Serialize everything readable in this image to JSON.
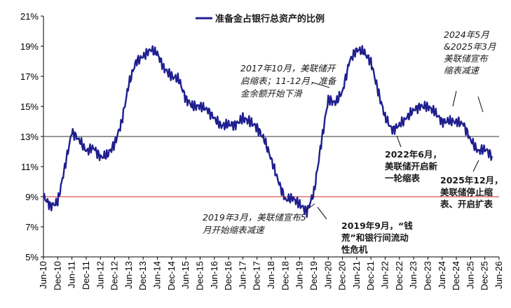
{
  "chart_data": {
    "type": "line",
    "title": "",
    "xlabel": "",
    "ylabel": "",
    "ylim": [
      5,
      21
    ],
    "y_ticks": [
      "5%",
      "7%",
      "9%",
      "11%",
      "13%",
      "15%",
      "17%",
      "19%",
      "21%"
    ],
    "y_tick_values": [
      5,
      7,
      9,
      11,
      13,
      15,
      17,
      19,
      21
    ],
    "x_range": [
      "2010-06",
      "2026-06"
    ],
    "x_ticks": [
      "Jun-10",
      "Dec-10",
      "Jun-11",
      "Dec-11",
      "Jun-12",
      "Dec-12",
      "Jun-13",
      "Dec-13",
      "Jun-14",
      "Dec-14",
      "Jun-15",
      "Dec-15",
      "Jun-16",
      "Dec-16",
      "Jun-17",
      "Dec-17",
      "Jun-18",
      "Dec-18",
      "Jun-19",
      "Dec-19",
      "Jun-20",
      "Dec-20",
      "Jun-21",
      "Dec-21",
      "Jun-22",
      "Dec-22",
      "Jun-23",
      "Dec-23",
      "Jun-24",
      "Dec-24",
      "Jun-25",
      "Dec-25",
      "Jun-26"
    ],
    "legend": {
      "placement": "top",
      "label": "准备金占银行总资产的比例"
    },
    "series": [
      {
        "name": "准备金占银行总资产的比例",
        "color": "#1f1f8f",
        "x": [
          "2010-06",
          "2010-09",
          "2010-12",
          "2011-03",
          "2011-06",
          "2011-09",
          "2011-12",
          "2012-03",
          "2012-06",
          "2012-09",
          "2012-12",
          "2013-03",
          "2013-06",
          "2013-09",
          "2013-12",
          "2014-03",
          "2014-06",
          "2014-09",
          "2014-12",
          "2015-03",
          "2015-06",
          "2015-09",
          "2015-12",
          "2016-03",
          "2016-06",
          "2016-09",
          "2016-12",
          "2017-03",
          "2017-06",
          "2017-09",
          "2017-12",
          "2018-03",
          "2018-06",
          "2018-09",
          "2018-12",
          "2019-03",
          "2019-06",
          "2019-09",
          "2019-12",
          "2020-03",
          "2020-06",
          "2020-09",
          "2020-12",
          "2021-03",
          "2021-06",
          "2021-09",
          "2021-12",
          "2022-03",
          "2022-06",
          "2022-09",
          "2022-12",
          "2023-03",
          "2023-06",
          "2023-09",
          "2023-12",
          "2024-03",
          "2024-06",
          "2024-09",
          "2024-12",
          "2025-03",
          "2025-06",
          "2025-09",
          "2025-12",
          "2026-03"
        ],
        "values": [
          9.0,
          8.4,
          8.6,
          11.0,
          13.3,
          12.8,
          12.0,
          12.3,
          11.6,
          11.8,
          12.5,
          14.0,
          16.5,
          18.0,
          18.3,
          18.8,
          18.5,
          17.5,
          17.0,
          16.8,
          15.5,
          15.0,
          15.0,
          14.8,
          14.2,
          13.7,
          13.8,
          13.8,
          14.2,
          14.0,
          13.6,
          12.8,
          11.5,
          10.0,
          8.8,
          8.9,
          8.5,
          8.0,
          9.3,
          12.5,
          15.5,
          15.2,
          16.0,
          18.0,
          18.8,
          18.6,
          18.0,
          16.0,
          14.3,
          13.4,
          13.8,
          14.2,
          14.8,
          15.0,
          15.0,
          14.6,
          14.0,
          14.0,
          14.0,
          13.8,
          12.8,
          12.0,
          12.2,
          11.7
        ]
      }
    ],
    "reference_lines": [
      {
        "value": 13,
        "color": "#5a5a5a"
      },
      {
        "value": 9,
        "color": "#e05050"
      }
    ],
    "annotations": [
      {
        "lines": [
          "2017年10月，美联储开",
          "启缩表；11-12月，准备",
          "金余额开始下滑"
        ]
      },
      {
        "lines": [
          "2024年5月",
          "&2025年3月",
          "美联储宣布",
          "缩表减速"
        ]
      },
      {
        "lines": [
          "2022年6月，",
          "美联储开启新",
          "一轮缩表"
        ]
      },
      {
        "lines": [
          "2025年12月，",
          "美联储停止缩",
          "表、开启扩表"
        ]
      },
      {
        "lines": [
          "2019年3月，美联储宣布5",
          "月开始缩表减速"
        ]
      },
      {
        "lines": [
          "2019年9月，“钱",
          "荒”和银行间流动",
          "性危机"
        ]
      }
    ]
  }
}
